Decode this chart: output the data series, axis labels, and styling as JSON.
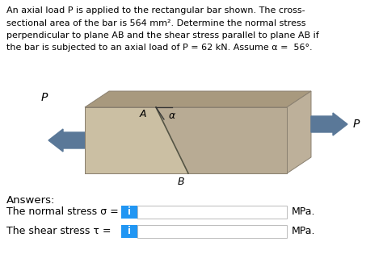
{
  "title_lines": [
    "An axial load P is applied to the rectangular bar shown. The cross-",
    "sectional area of the bar is 564 mm². Determine the normal stress",
    "perpendicular to plane AB and the shear stress parallel to plane AB if",
    "the bar is subjected to an axial load of P = 62 kN. Assume α =  56°."
  ],
  "answers_label": "Answers:",
  "normal_stress_label": "The normal stress σ = ",
  "shear_stress_label": "The shear stress τ = ",
  "mpa_label": "MPa.",
  "bar_color_face": "#cbbfa3",
  "bar_color_top": "#a8997e",
  "bar_color_right": "#bdb09a",
  "bar_color_cut": "#b8ab94",
  "arrow_color": "#5a7898",
  "info_box_color": "#2196F3",
  "input_box_color": "#ffffff",
  "input_border_color": "#bbbbbb",
  "background_color": "#ffffff",
  "text_color": "#000000"
}
